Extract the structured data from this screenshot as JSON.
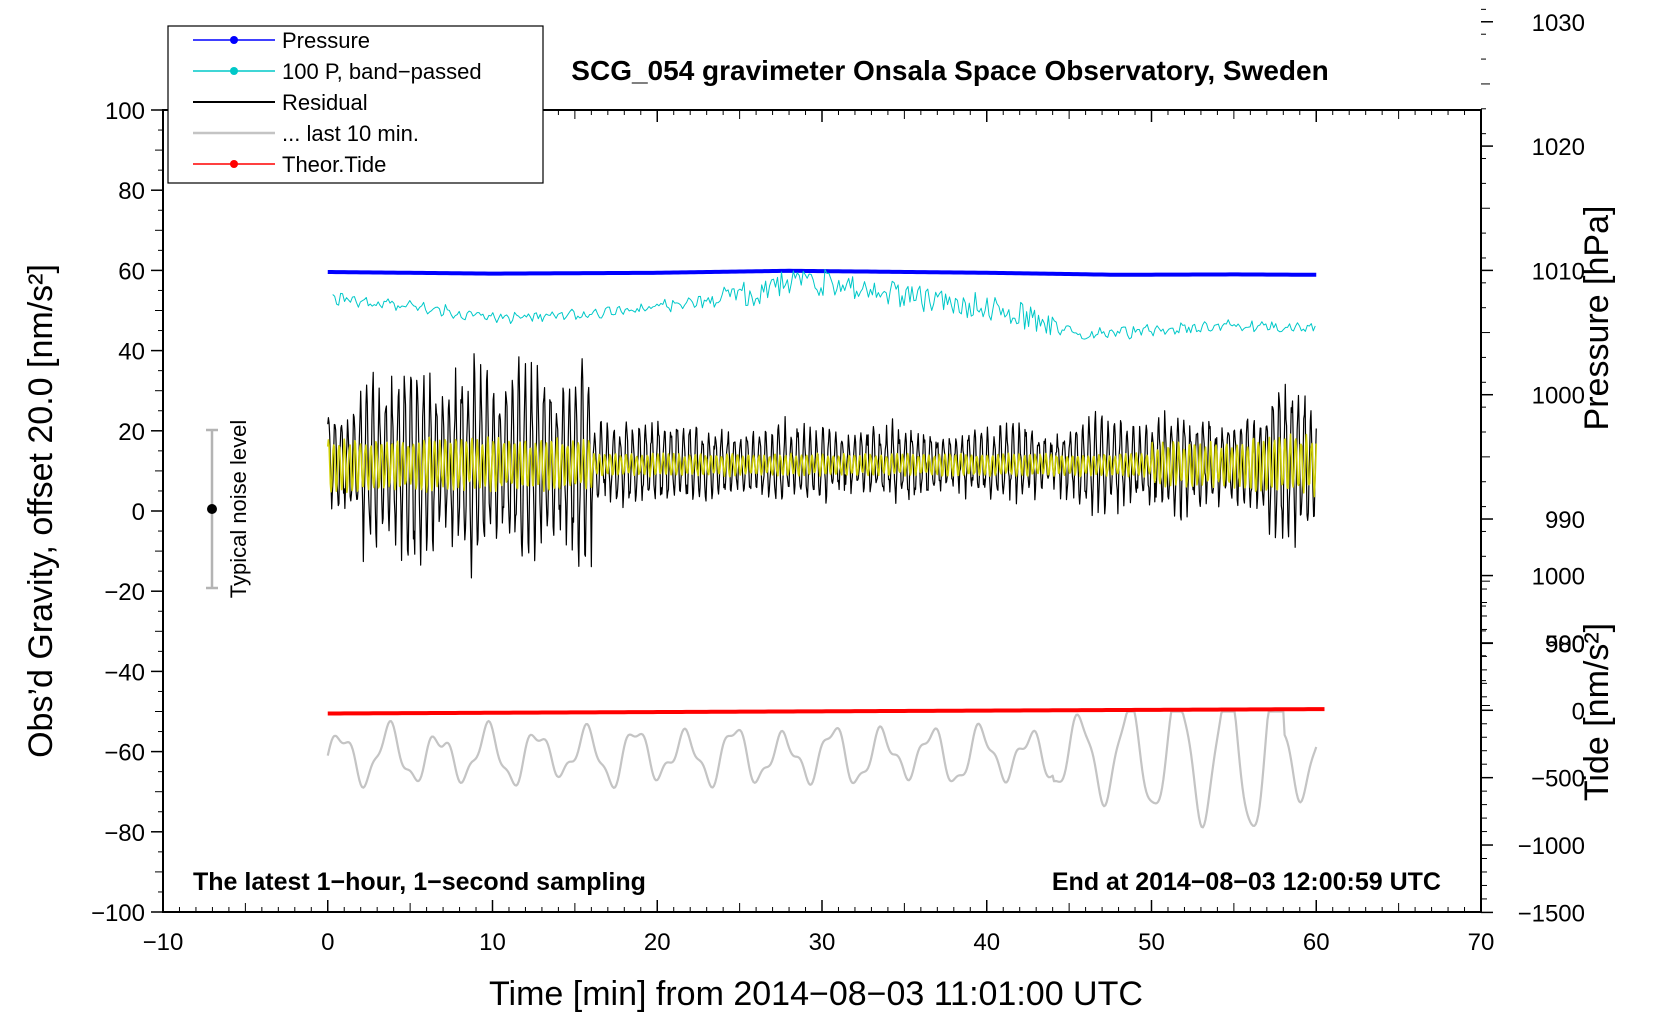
{
  "chart_data": {
    "type": "line",
    "title": "SCG_054 gravimeter Onsala Space Observatory, Sweden",
    "xlabel": "Time [min] from 2014−08−03 11:01:00 UTC",
    "ylabel_left": "Obs’d Gravity, offset 20.0 [nm/s²]",
    "ylabel_right_pressure": "Pressure [hPa]",
    "ylabel_right_tide": "Tide [nm/s²]",
    "xlim": [
      -10,
      70
    ],
    "ylim": [
      -100,
      100
    ],
    "pressure_axis_range": [
      975,
      1035
    ],
    "tide_axis_range": [
      -1500,
      1000
    ],
    "x_ticks": [
      "−10",
      "0",
      "10",
      "20",
      "30",
      "40",
      "50",
      "60",
      "70"
    ],
    "y_ticks": [
      "100",
      "80",
      "60",
      "40",
      "20",
      "0",
      "−20",
      "−40",
      "−60",
      "−80",
      "−100"
    ],
    "pressure_ticks": [
      "1030",
      "1020",
      "1010",
      "1000",
      "990",
      "980"
    ],
    "tide_ticks": [
      "1000",
      "500",
      "0",
      "−500",
      "−1000",
      "−1500"
    ],
    "legend": {
      "placement": "top-left",
      "entries": [
        "Pressure",
        "100 P, band−passed",
        "Residual",
        "... last 10 min.",
        "Theor.Tide"
      ]
    },
    "annotations": {
      "bottom_left": "The latest 1−hour, 1−second sampling",
      "bottom_right": "End at 2014−08−03 12:00:59 UTC",
      "noise_label": "Typical noise level"
    },
    "noise_bar": {
      "x": -7,
      "center": 0,
      "low": -20,
      "high": 20
    },
    "series": [
      {
        "name": "Pressure",
        "color": "#0000ff",
        "x": [
          0,
          10,
          20,
          28,
          33,
          40,
          48,
          55,
          60
        ],
        "values": [
          59.6,
          59.2,
          59.4,
          59.9,
          59.7,
          59.4,
          58.9,
          59.0,
          58.9
        ]
      },
      {
        "name": "100 P, band−passed",
        "color": "#00c8c8",
        "x": [
          0,
          5,
          10,
          15,
          20,
          25,
          28,
          32,
          36,
          40,
          43,
          46,
          50,
          55,
          60
        ],
        "values": [
          53,
          51,
          48,
          49,
          51,
          53,
          57,
          56,
          53,
          51,
          47,
          44,
          45,
          46,
          46
        ]
      },
      {
        "name": "Residual",
        "color": "#000000",
        "x": [
          0,
          60
        ],
        "range": [
          -20,
          45
        ]
      },
      {
        "name": "... last 10 min.",
        "color": "#c4c4c4",
        "x": [
          0,
          60
        ],
        "range": [
          -85,
          -50
        ]
      },
      {
        "name": "Theor.Tide",
        "color": "#ff0000",
        "x": [
          0,
          60.5
        ],
        "values": [
          -50.5,
          -49.4
        ]
      }
    ]
  }
}
